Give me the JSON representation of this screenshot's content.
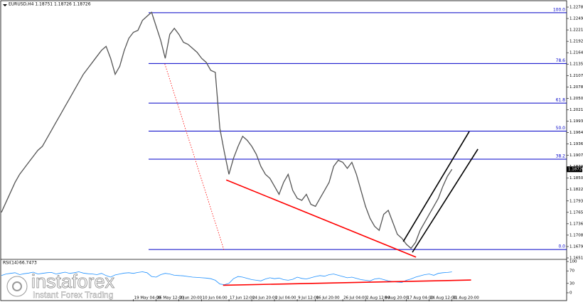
{
  "chart_data": [
    {
      "type": "line",
      "header": "EURUSD,H4  1.18751 1.18726 1.18726",
      "color": "#555555",
      "categories": [
        null,
        null,
        null,
        null,
        null,
        null,
        null,
        null,
        null,
        null,
        null,
        null,
        null,
        null,
        null,
        null,
        null,
        null,
        null,
        null,
        null,
        null,
        null,
        null,
        null,
        null,
        null,
        null,
        null,
        "19 May 04:00",
        null,
        null,
        null,
        null,
        "26 May 12:00",
        null,
        null,
        null,
        null,
        "2 Jun 20:00",
        null,
        null,
        null,
        null,
        "10 Jun 04:00",
        null,
        null,
        null,
        null,
        null,
        "17 Jun 12:00",
        null,
        null,
        null,
        null,
        "24 Jun 20:00",
        null,
        null,
        null,
        null,
        "2 Jul 04:00",
        null,
        null,
        null,
        null,
        "9 Jul 12:00",
        null,
        null,
        null,
        "16 Jul 20:00",
        null,
        null,
        null,
        null,
        null,
        "26 Jul 04:00",
        null,
        null,
        null,
        null,
        "2 Aug 12:00",
        null,
        null,
        null,
        "9 Aug 20:00",
        null,
        null,
        null,
        null,
        "17 Aug 04:00",
        null,
        null,
        null,
        null,
        "24 Aug 12:00",
        null,
        null,
        null,
        null,
        "31 Aug 20:00"
      ],
      "values": [
        1.1765,
        1.179,
        1.1815,
        1.184,
        1.186,
        1.1875,
        1.189,
        1.1905,
        1.192,
        1.193,
        1.195,
        1.197,
        1.199,
        1.201,
        1.203,
        1.205,
        1.207,
        1.209,
        1.211,
        1.2125,
        1.214,
        1.2155,
        1.217,
        1.218,
        1.215,
        1.211,
        1.213,
        1.217,
        1.22,
        1.2215,
        1.222,
        1.2245,
        1.2255,
        1.2265,
        1.223,
        1.2195,
        1.215,
        1.221,
        1.2225,
        1.221,
        1.219,
        1.2185,
        1.2175,
        1.2165,
        1.215,
        1.214,
        1.212,
        1.2115,
        1.1975,
        1.1915,
        1.186,
        1.19,
        1.193,
        1.1955,
        1.1945,
        1.193,
        1.191,
        1.188,
        1.186,
        1.185,
        1.183,
        1.181,
        1.184,
        1.186,
        1.182,
        1.18,
        1.1795,
        1.181,
        1.1785,
        1.178,
        1.18,
        1.182,
        1.184,
        1.188,
        1.1895,
        1.189,
        1.1875,
        1.189,
        1.186,
        1.182,
        1.178,
        1.175,
        1.173,
        1.172,
        1.176,
        1.177,
        1.174,
        1.171,
        1.17,
        1.1685,
        1.1675,
        1.169,
        1.172,
        1.174,
        1.176,
        1.178,
        1.18,
        1.183,
        1.1855,
        1.18726
      ],
      "xlim": [
        0,
        124.2
      ],
      "ylim": [
        1.1651,
        1.2278
      ],
      "yticks": [
        {
          "value": 1.1651,
          "label": "1.16510"
        },
        {
          "value": 1.16795,
          "label": "1.16795"
        },
        {
          "value": 1.1708,
          "label": "1.17080"
        },
        {
          "value": 1.17365,
          "label": "1.17365"
        },
        {
          "value": 1.1765,
          "label": "1.17650"
        },
        {
          "value": 1.17935,
          "label": "1.17935"
        },
        {
          "value": 1.1822,
          "label": "1.18220"
        },
        {
          "value": 1.18505,
          "label": "1.18505"
        },
        {
          "value": 1.1879,
          "label": "1.18790"
        },
        {
          "value": 1.19075,
          "label": "1.19075"
        },
        {
          "value": 1.1936,
          "label": "1.19360"
        },
        {
          "value": 1.19645,
          "label": "1.19645"
        },
        {
          "value": 1.1993,
          "label": "1.19930"
        },
        {
          "value": 1.20215,
          "label": "1.20215"
        },
        {
          "value": 1.205,
          "label": "1.20500"
        },
        {
          "value": 1.20785,
          "label": "1.20785"
        },
        {
          "value": 1.2107,
          "label": "1.21070"
        },
        {
          "value": 1.21355,
          "label": "1.21355"
        },
        {
          "value": 1.2164,
          "label": "1.21640"
        },
        {
          "value": 1.21925,
          "label": "1.21925"
        },
        {
          "value": 1.2221,
          "label": "1.22210"
        },
        {
          "value": 1.22495,
          "label": "1.22495"
        },
        {
          "value": 1.2278,
          "label": "1.22780"
        }
      ],
      "fib_color": "#0000c8",
      "fib_levels": [
        {
          "level": "100.0",
          "price": 1.2264
        },
        {
          "level": "78.6",
          "price": 1.2137
        },
        {
          "level": "61.8",
          "price": 1.2038
        },
        {
          "level": "50.0",
          "price": 1.1968
        },
        {
          "level": "38.2",
          "price": 1.1898
        },
        {
          "level": "0.0",
          "price": 1.1672
        }
      ],
      "trend_lines": [
        {
          "color": "#ff0000",
          "style": "dotted",
          "points": [
            [
              35.9,
              1.2136
            ],
            [
              48.9,
              1.1671
            ]
          ]
        },
        {
          "color": "#ff0000",
          "style": "solid",
          "points": [
            [
              49.4,
              1.1846
            ],
            [
              91.1,
              1.1653
            ]
          ]
        },
        {
          "color": "#000000",
          "style": "solid",
          "points": [
            [
              88.3,
              1.1692
            ],
            [
              102.8,
              1.1967
            ]
          ]
        },
        {
          "color": "#000000",
          "style": "solid",
          "points": [
            [
              90.3,
              1.1665
            ],
            [
              104.7,
              1.1923
            ]
          ]
        }
      ]
    },
    {
      "type": "line",
      "title": "RSI(14)",
      "color": "#1e90ff",
      "values": [
        55,
        60,
        62,
        64,
        58,
        61,
        63,
        66,
        60,
        62,
        64,
        65,
        60,
        63,
        66,
        62,
        64,
        67,
        63,
        61,
        60,
        58,
        62,
        55,
        50,
        57,
        60,
        63,
        64,
        62,
        65,
        67,
        64,
        52,
        50,
        58,
        62,
        60,
        56,
        55,
        54,
        52,
        50,
        49,
        48,
        47,
        45,
        40,
        28,
        26,
        30,
        45,
        52,
        50,
        46,
        42,
        40,
        38,
        44,
        48,
        45,
        47,
        42,
        40,
        43,
        50,
        46,
        44,
        48,
        52,
        55,
        53,
        58,
        60,
        56,
        52,
        48,
        50,
        46,
        42,
        40,
        38,
        44,
        46,
        42,
        38,
        36,
        34,
        33,
        40,
        44,
        50,
        54,
        58,
        60,
        56,
        62,
        64,
        65,
        66.7473
      ],
      "xlim": [
        0,
        124.2
      ],
      "ylim": [
        0,
        100
      ],
      "yticks": [
        0,
        30,
        70,
        100
      ],
      "trend_lines": [
        {
          "color": "#ff0000",
          "style": "solid",
          "points": [
            [
              48.7,
              24
            ],
            [
              103.2,
              40.7
            ]
          ]
        }
      ]
    },
    {
      "brand": "instaforex",
      "tagline": "Instant Forex Trading"
    }
  ]
}
